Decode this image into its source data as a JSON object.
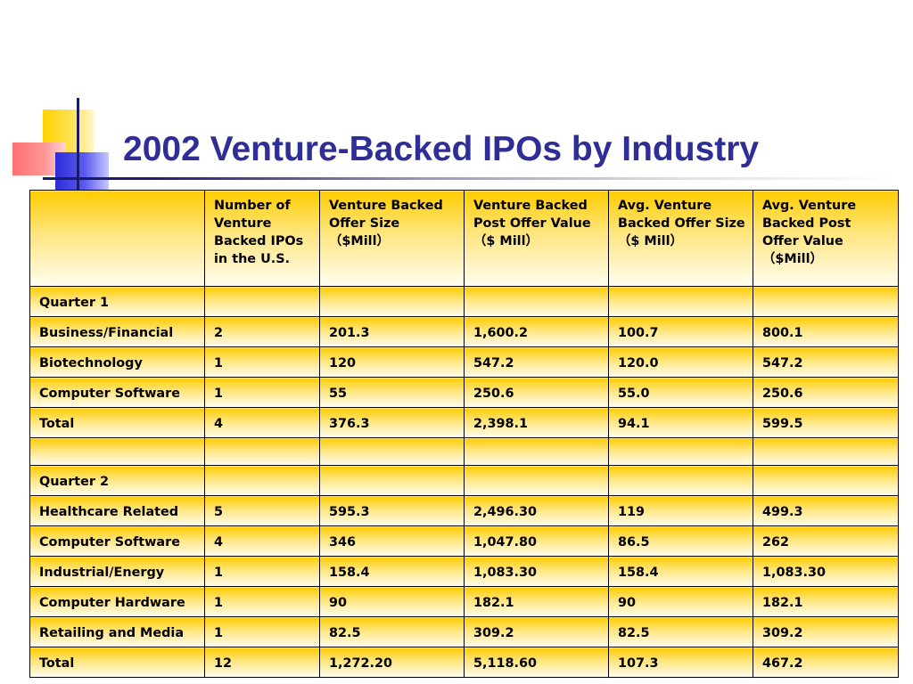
{
  "title": "2002 Venture-Backed IPOs by Industry",
  "table": {
    "headers": [
      "",
      "Number of Venture Backed IPOs in the U.S.",
      "Venture Backed Offer Size （$Mill）",
      "Venture Backed Post Offer Value （$ Mill）",
      "Avg. Venture Backed Offer Size （$ Mill）",
      "Avg. Venture Backed Post Offer Value （$Mill）"
    ],
    "rows": [
      [
        "Quarter 1",
        "",
        "",
        "",
        "",
        ""
      ],
      [
        "Business/Financial",
        "2",
        "201.3",
        "1,600.2",
        "100.7",
        "800.1"
      ],
      [
        "Biotechnology",
        "1",
        "120",
        "547.2",
        "120.0",
        "547.2"
      ],
      [
        "Computer Software",
        "1",
        "55",
        "250.6",
        "55.0",
        "250.6"
      ],
      [
        "Total",
        "4",
        "376.3",
        "2,398.1",
        "94.1",
        "599.5"
      ],
      [
        "",
        "",
        "",
        "",
        "",
        ""
      ],
      [
        "Quarter 2",
        "",
        "",
        "",
        "",
        ""
      ],
      [
        "Healthcare Related",
        "5",
        "595.3",
        "2,496.30",
        "119",
        "499.3"
      ],
      [
        "Computer Software",
        "4",
        "346",
        "1,047.80",
        "86.5",
        "262"
      ],
      [
        "Industrial/Energy",
        "1",
        "158.4",
        "1,083.30",
        "158.4",
        "1,083.30"
      ],
      [
        "Computer Hardware",
        "1",
        "90",
        "182.1",
        "90",
        "182.1"
      ],
      [
        "Retailing and Media",
        "1",
        "82.5",
        "309.2",
        "82.5",
        "309.2"
      ],
      [
        "Total",
        "12",
        "1,272.20",
        "5,118.60",
        "107.3",
        "467.2"
      ]
    ]
  }
}
